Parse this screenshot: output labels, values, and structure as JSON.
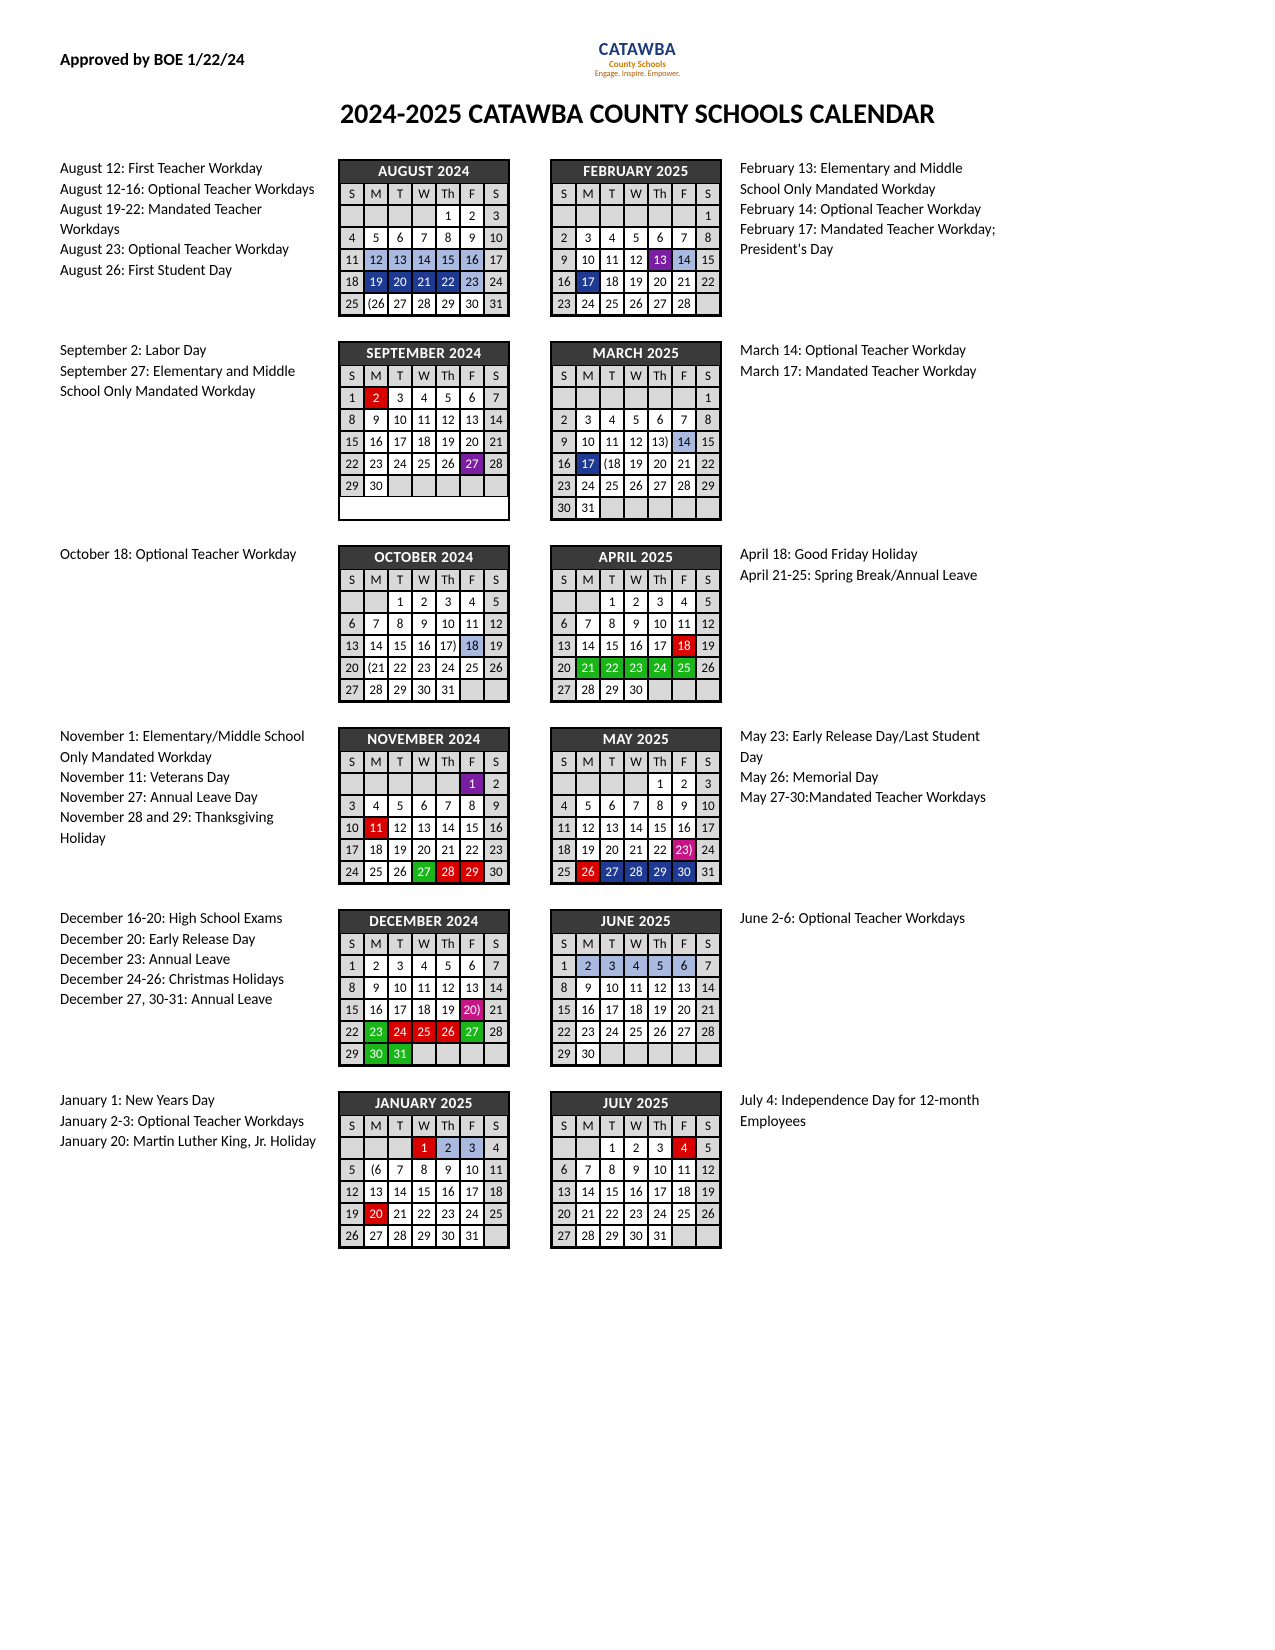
{
  "approved": "Approved by BOE 1/22/24",
  "logo": {
    "main": "CATAWBA",
    "sub": "County Schools",
    "tag": "Engage. Inspire. Empower."
  },
  "title": "2024-2025 CATAWBA COUNTY SCHOOLS CALENDAR",
  "dayHeaders": [
    "S",
    "M",
    "T",
    "W",
    "Th",
    "F",
    "S"
  ],
  "colors": {
    "weekend": "#d9d9d9",
    "darkblue": "#1f3a93",
    "purple": "#7a1fa2",
    "red": "#d90000",
    "lightblue": "#aab9e0",
    "green": "#19b519",
    "magenta": "#c71585"
  },
  "rows": [
    {
      "leftNotes": [
        "August 12: First Teacher Workday",
        "August 12-16: Optional Teacher Workdays",
        "August 19-22: Mandated Teacher Workdays",
        "August 23: Optional Teacher Workday",
        "August 26: First Student Day"
      ],
      "rightNotes": [
        "February 13: Elementary and Middle School Only Mandated Workday",
        "February 14: Optional Teacher Workday",
        "February 17: Mandated Teacher Workday; President's Day"
      ],
      "months": [
        {
          "name": "AUGUST 2024",
          "startDay": 4,
          "numDays": 31,
          "styles": {
            "12": "lightblue",
            "13": "lightblue",
            "14": "lightblue",
            "15": "lightblue",
            "16": "lightblue",
            "19": "darkblue",
            "20": "darkblue",
            "21": "darkblue",
            "22": "darkblue",
            "23": "lightblue",
            "26": {
              "txt": "(26"
            }
          }
        },
        {
          "name": "FEBRUARY 2025",
          "startDay": 6,
          "numDays": 28,
          "styles": {
            "13": "purple",
            "14": "lightblue",
            "17": "darkblue"
          }
        }
      ]
    },
    {
      "leftNotes": [
        "September 2: Labor Day",
        "September 27: Elementary and Middle School Only Mandated Workday"
      ],
      "rightNotes": [
        "March 14: Optional Teacher Workday",
        "March 17: Mandated Teacher Workday"
      ],
      "months": [
        {
          "name": "SEPTEMBER 2024",
          "startDay": 0,
          "numDays": 30,
          "styles": {
            "2": "red",
            "27": "purple"
          }
        },
        {
          "name": "MARCH 2025",
          "startDay": 6,
          "numDays": 31,
          "styles": {
            "13": {
              "txt": "13)"
            },
            "14": "lightblue",
            "17": "darkblue",
            "18": {
              "txt": "(18"
            }
          }
        }
      ]
    },
    {
      "leftNotes": [
        "October 18: Optional Teacher Workday"
      ],
      "rightNotes": [
        "April 18: Good Friday Holiday",
        "April 21-25: Spring Break/Annual Leave"
      ],
      "months": [
        {
          "name": "OCTOBER 2024",
          "startDay": 2,
          "numDays": 31,
          "styles": {
            "17": {
              "txt": "17)"
            },
            "18": "lightblue",
            "21": {
              "txt": "(21"
            }
          }
        },
        {
          "name": "APRIL 2025",
          "startDay": 2,
          "numDays": 30,
          "styles": {
            "18": "red",
            "21": "green",
            "22": "green",
            "23": "green",
            "24": "green",
            "25": "green"
          }
        }
      ]
    },
    {
      "leftNotes": [
        "November 1: Elementary/Middle School Only Mandated Workday",
        "November 11: Veterans Day",
        "November 27: Annual Leave Day",
        "November 28 and 29: Thanksgiving Holiday"
      ],
      "rightNotes": [
        "May 23: Early Release Day/Last Student Day",
        "May 26: Memorial Day",
        "May 27-30:Mandated Teacher Workdays"
      ],
      "months": [
        {
          "name": "NOVEMBER 2024",
          "startDay": 5,
          "numDays": 30,
          "styles": {
            "1": "purple",
            "11": "red",
            "27": "green",
            "28": "red",
            "29": "red"
          }
        },
        {
          "name": "MAY 2025",
          "startDay": 4,
          "numDays": 31,
          "styles": {
            "23": {
              "bg": "magenta",
              "txt": "23)"
            },
            "26": "red",
            "27": "darkblue",
            "28": "darkblue",
            "29": "darkblue",
            "30": "darkblue"
          }
        }
      ]
    },
    {
      "leftNotes": [
        "December 16-20: High School Exams",
        "December 20: Early Release Day",
        "December 23: Annual Leave",
        "December 24-26: Christmas Holidays",
        "December 27, 30-31: Annual Leave"
      ],
      "rightNotes": [
        "June 2-6: Optional Teacher Workdays"
      ],
      "months": [
        {
          "name": "DECEMBER 2024",
          "startDay": 0,
          "numDays": 31,
          "styles": {
            "20": {
              "bg": "magenta",
              "txt": "20)"
            },
            "23": "green",
            "24": "red",
            "25": "red",
            "26": "red",
            "27": "green",
            "30": "green",
            "31": "green"
          }
        },
        {
          "name": "JUNE 2025",
          "startDay": 0,
          "numDays": 30,
          "styles": {
            "2": "lightblue",
            "3": "lightblue",
            "4": "lightblue",
            "5": "lightblue",
            "6": "lightblue"
          }
        }
      ]
    },
    {
      "leftNotes": [
        "January 1: New Years Day",
        "January 2-3: Optional Teacher Workdays",
        "January 20: Martin Luther King, Jr. Holiday"
      ],
      "rightNotes": [
        "July 4: Independence Day for 12-month Employees"
      ],
      "months": [
        {
          "name": "JANUARY 2025",
          "startDay": 3,
          "numDays": 31,
          "styles": {
            "1": "red",
            "2": "lightblue",
            "3": "lightblue",
            "6": {
              "txt": "(6"
            },
            "20": "red"
          }
        },
        {
          "name": "JULY 2025",
          "startDay": 2,
          "numDays": 31,
          "styles": {
            "4": "red"
          }
        }
      ]
    }
  ]
}
